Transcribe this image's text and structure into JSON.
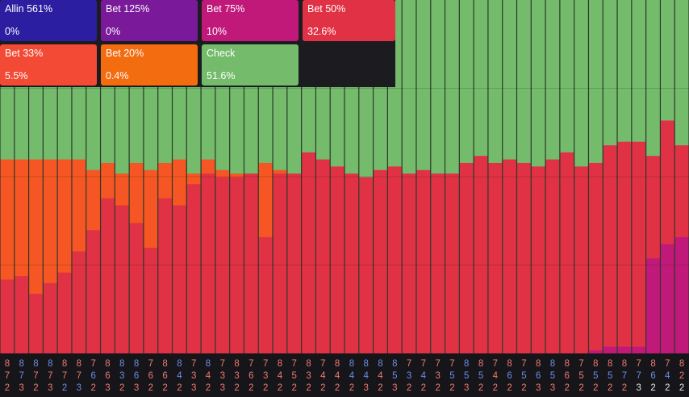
{
  "legend": [
    {
      "label": "Allin 561%",
      "value": "0%",
      "color": "#2b1ea0"
    },
    {
      "label": "Bet 125%",
      "value": "0%",
      "color": "#7a1a9a"
    },
    {
      "label": "Bet 75%",
      "value": "10%",
      "color": "#c0197a"
    },
    {
      "label": "Bet 50%",
      "value": "32.6%",
      "color": "#e13145"
    },
    {
      "label": "Bet 33%",
      "value": "5.5%",
      "color": "#f24a35"
    },
    {
      "label": "Bet 20%",
      "value": "0.4%",
      "color": "#f36c10"
    },
    {
      "label": "Check",
      "value": "51.6%",
      "color": "#74bb6b"
    }
  ],
  "colors": {
    "check": "#74bb6b",
    "bet50": "#e13145",
    "bet33": "#f55623",
    "bet75": "#c0197a",
    "rank_blue": "#6e8ee6",
    "rank_red": "#f07a6e",
    "rank_white": "#e8e8e8",
    "background": "#16161a"
  },
  "chart_data": {
    "type": "bar",
    "stacked": true,
    "ylim": [
      0,
      100
    ],
    "series_order": [
      "Bet 75%",
      "Bet 50%",
      "Bet 33%",
      "Check"
    ],
    "columns": [
      {
        "ranks": [
          "8",
          "7",
          "2"
        ],
        "suits": [
          "red",
          "red",
          "red"
        ],
        "check": 45,
        "bet33": 34,
        "bet50": 21,
        "bet75": 0
      },
      {
        "ranks": [
          "8",
          "7",
          "3"
        ],
        "suits": [
          "blue",
          "blue",
          "red"
        ],
        "check": 45,
        "bet33": 33,
        "bet50": 22,
        "bet75": 0
      },
      {
        "ranks": [
          "8",
          "7",
          "2"
        ],
        "suits": [
          "blue",
          "red",
          "red"
        ],
        "check": 45,
        "bet33": 38,
        "bet50": 17,
        "bet75": 0
      },
      {
        "ranks": [
          "8",
          "7",
          "3"
        ],
        "suits": [
          "blue",
          "red",
          "red"
        ],
        "check": 45,
        "bet33": 35,
        "bet50": 20,
        "bet75": 0
      },
      {
        "ranks": [
          "8",
          "7",
          "2"
        ],
        "suits": [
          "red",
          "red",
          "blue"
        ],
        "check": 45,
        "bet33": 32,
        "bet50": 23,
        "bet75": 0
      },
      {
        "ranks": [
          "8",
          "7",
          "3"
        ],
        "suits": [
          "red",
          "red",
          "blue"
        ],
        "check": 45,
        "bet33": 26,
        "bet50": 29,
        "bet75": 0
      },
      {
        "ranks": [
          "7",
          "6",
          "2"
        ],
        "suits": [
          "red",
          "blue",
          "red"
        ],
        "check": 48,
        "bet33": 17,
        "bet50": 35,
        "bet75": 0
      },
      {
        "ranks": [
          "8",
          "6",
          "3"
        ],
        "suits": [
          "red",
          "red",
          "red"
        ],
        "check": 46,
        "bet33": 10,
        "bet50": 44,
        "bet75": 0
      },
      {
        "ranks": [
          "8",
          "3",
          "2"
        ],
        "suits": [
          "blue",
          "blue",
          "red"
        ],
        "check": 49,
        "bet33": 9,
        "bet50": 42,
        "bet75": 0
      },
      {
        "ranks": [
          "8",
          "6",
          "3"
        ],
        "suits": [
          "blue",
          "blue",
          "red"
        ],
        "check": 46,
        "bet33": 17,
        "bet50": 37,
        "bet75": 0
      },
      {
        "ranks": [
          "7",
          "6",
          "2"
        ],
        "suits": [
          "red",
          "red",
          "red"
        ],
        "check": 48,
        "bet33": 22,
        "bet50": 30,
        "bet75": 0
      },
      {
        "ranks": [
          "8",
          "6",
          "2"
        ],
        "suits": [
          "red",
          "red",
          "red"
        ],
        "check": 46,
        "bet33": 10,
        "bet50": 44,
        "bet75": 0
      },
      {
        "ranks": [
          "8",
          "4",
          "2"
        ],
        "suits": [
          "blue",
          "blue",
          "red"
        ],
        "check": 45,
        "bet33": 13,
        "bet50": 42,
        "bet75": 0
      },
      {
        "ranks": [
          "7",
          "3",
          "3"
        ],
        "suits": [
          "red",
          "red",
          "red"
        ],
        "check": 49,
        "bet33": 3,
        "bet50": 48,
        "bet75": 0
      },
      {
        "ranks": [
          "8",
          "4",
          "2"
        ],
        "suits": [
          "blue",
          "red",
          "red"
        ],
        "check": 45,
        "bet33": 4,
        "bet50": 51,
        "bet75": 0
      },
      {
        "ranks": [
          "7",
          "3",
          "3"
        ],
        "suits": [
          "red",
          "red",
          "red"
        ],
        "check": 48,
        "bet33": 2,
        "bet50": 50,
        "bet75": 0
      },
      {
        "ranks": [
          "8",
          "3",
          "2"
        ],
        "suits": [
          "red",
          "red",
          "red"
        ],
        "check": 49,
        "bet33": 1,
        "bet50": 50,
        "bet75": 0
      },
      {
        "ranks": [
          "7",
          "6",
          "2"
        ],
        "suits": [
          "red",
          "red",
          "red"
        ],
        "check": 49,
        "bet33": 0,
        "bet50": 51,
        "bet75": 0
      },
      {
        "ranks": [
          "7",
          "3",
          "2"
        ],
        "suits": [
          "red",
          "red",
          "red"
        ],
        "check": 46,
        "bet33": 21,
        "bet50": 33,
        "bet75": 0
      },
      {
        "ranks": [
          "8",
          "4",
          "2"
        ],
        "suits": [
          "red",
          "red",
          "red"
        ],
        "check": 48,
        "bet33": 1,
        "bet50": 51,
        "bet75": 0
      },
      {
        "ranks": [
          "7",
          "5",
          "2"
        ],
        "suits": [
          "red",
          "red",
          "red"
        ],
        "check": 49,
        "bet33": 0,
        "bet50": 51,
        "bet75": 0
      },
      {
        "ranks": [
          "8",
          "3",
          "2"
        ],
        "suits": [
          "red",
          "red",
          "red"
        ],
        "check": 43,
        "bet33": 0,
        "bet50": 57,
        "bet75": 0
      },
      {
        "ranks": [
          "7",
          "4",
          "2"
        ],
        "suits": [
          "red",
          "red",
          "red"
        ],
        "check": 45,
        "bet33": 0,
        "bet50": 55,
        "bet75": 0
      },
      {
        "ranks": [
          "8",
          "4",
          "2"
        ],
        "suits": [
          "red",
          "red",
          "red"
        ],
        "check": 47,
        "bet33": 0,
        "bet50": 53,
        "bet75": 0
      },
      {
        "ranks": [
          "8",
          "4",
          "2"
        ],
        "suits": [
          "blue",
          "blue",
          "red"
        ],
        "check": 49,
        "bet33": 0,
        "bet50": 51,
        "bet75": 0
      },
      {
        "ranks": [
          "8",
          "4",
          "3"
        ],
        "suits": [
          "blue",
          "blue",
          "red"
        ],
        "check": 50,
        "bet33": 0,
        "bet50": 50,
        "bet75": 0
      },
      {
        "ranks": [
          "8",
          "4",
          "2"
        ],
        "suits": [
          "blue",
          "red",
          "red"
        ],
        "check": 48,
        "bet33": 0,
        "bet50": 52,
        "bet75": 0
      },
      {
        "ranks": [
          "8",
          "5",
          "3"
        ],
        "suits": [
          "blue",
          "blue",
          "red"
        ],
        "check": 47,
        "bet33": 0,
        "bet50": 53,
        "bet75": 0
      },
      {
        "ranks": [
          "7",
          "3",
          "2"
        ],
        "suits": [
          "red",
          "blue",
          "red"
        ],
        "check": 49,
        "bet33": 0,
        "bet50": 51,
        "bet75": 0
      },
      {
        "ranks": [
          "7",
          "4",
          "2"
        ],
        "suits": [
          "red",
          "blue",
          "red"
        ],
        "check": 48,
        "bet33": 0,
        "bet50": 52,
        "bet75": 0
      },
      {
        "ranks": [
          "7",
          "3",
          "2"
        ],
        "suits": [
          "red",
          "red",
          "red"
        ],
        "check": 49,
        "bet33": 0,
        "bet50": 51,
        "bet75": 0
      },
      {
        "ranks": [
          "7",
          "5",
          "2"
        ],
        "suits": [
          "red",
          "blue",
          "red"
        ],
        "check": 49,
        "bet33": 0,
        "bet50": 51,
        "bet75": 0
      },
      {
        "ranks": [
          "8",
          "5",
          "3"
        ],
        "suits": [
          "blue",
          "blue",
          "red"
        ],
        "check": 46,
        "bet33": 0,
        "bet50": 54,
        "bet75": 0
      },
      {
        "ranks": [
          "8",
          "5",
          "2"
        ],
        "suits": [
          "red",
          "blue",
          "red"
        ],
        "check": 44,
        "bet33": 0,
        "bet50": 56,
        "bet75": 0
      },
      {
        "ranks": [
          "7",
          "4",
          "2"
        ],
        "suits": [
          "red",
          "red",
          "red"
        ],
        "check": 46,
        "bet33": 0,
        "bet50": 54,
        "bet75": 0
      },
      {
        "ranks": [
          "8",
          "6",
          "2"
        ],
        "suits": [
          "red",
          "blue",
          "red"
        ],
        "check": 45,
        "bet33": 0,
        "bet50": 55,
        "bet75": 0
      },
      {
        "ranks": [
          "7",
          "5",
          "2"
        ],
        "suits": [
          "red",
          "blue",
          "red"
        ],
        "check": 46,
        "bet33": 0,
        "bet50": 54,
        "bet75": 0
      },
      {
        "ranks": [
          "8",
          "6",
          "3"
        ],
        "suits": [
          "red",
          "blue",
          "red"
        ],
        "check": 47,
        "bet33": 0,
        "bet50": 53,
        "bet75": 0
      },
      {
        "ranks": [
          "8",
          "5",
          "3"
        ],
        "suits": [
          "blue",
          "blue",
          "red"
        ],
        "check": 45,
        "bet33": 0,
        "bet50": 55,
        "bet75": 0
      },
      {
        "ranks": [
          "8",
          "6",
          "2"
        ],
        "suits": [
          "red",
          "red",
          "red"
        ],
        "check": 43,
        "bet33": 0,
        "bet50": 57,
        "bet75": 0
      },
      {
        "ranks": [
          "7",
          "5",
          "2"
        ],
        "suits": [
          "red",
          "red",
          "red"
        ],
        "check": 47,
        "bet33": 0,
        "bet50": 53,
        "bet75": 0
      },
      {
        "ranks": [
          "8",
          "5",
          "2"
        ],
        "suits": [
          "red",
          "blue",
          "red"
        ],
        "check": 46,
        "bet33": 0,
        "bet50": 53,
        "bet75": 1
      },
      {
        "ranks": [
          "8",
          "5",
          "2"
        ],
        "suits": [
          "red",
          "blue",
          "red"
        ],
        "check": 41,
        "bet33": 0,
        "bet50": 57,
        "bet75": 2
      },
      {
        "ranks": [
          "8",
          "7",
          "2"
        ],
        "suits": [
          "red",
          "blue",
          "red"
        ],
        "check": 40,
        "bet33": 0,
        "bet50": 58,
        "bet75": 2
      },
      {
        "ranks": [
          "7",
          "7",
          "3"
        ],
        "suits": [
          "red",
          "blue",
          "white"
        ],
        "check": 40,
        "bet33": 0,
        "bet50": 58,
        "bet75": 2
      },
      {
        "ranks": [
          "8",
          "6",
          "2"
        ],
        "suits": [
          "red",
          "blue",
          "white"
        ],
        "check": 44,
        "bet33": 0,
        "bet50": 29,
        "bet75": 27
      },
      {
        "ranks": [
          "7",
          "4",
          "2"
        ],
        "suits": [
          "red",
          "blue",
          "white"
        ],
        "check": 34,
        "bet33": 0,
        "bet50": 35,
        "bet75": 31
      },
      {
        "ranks": [
          "8",
          "2",
          "2"
        ],
        "suits": [
          "red",
          "red",
          "white"
        ],
        "check": 41,
        "bet33": 0,
        "bet50": 26,
        "bet75": 33
      }
    ]
  }
}
